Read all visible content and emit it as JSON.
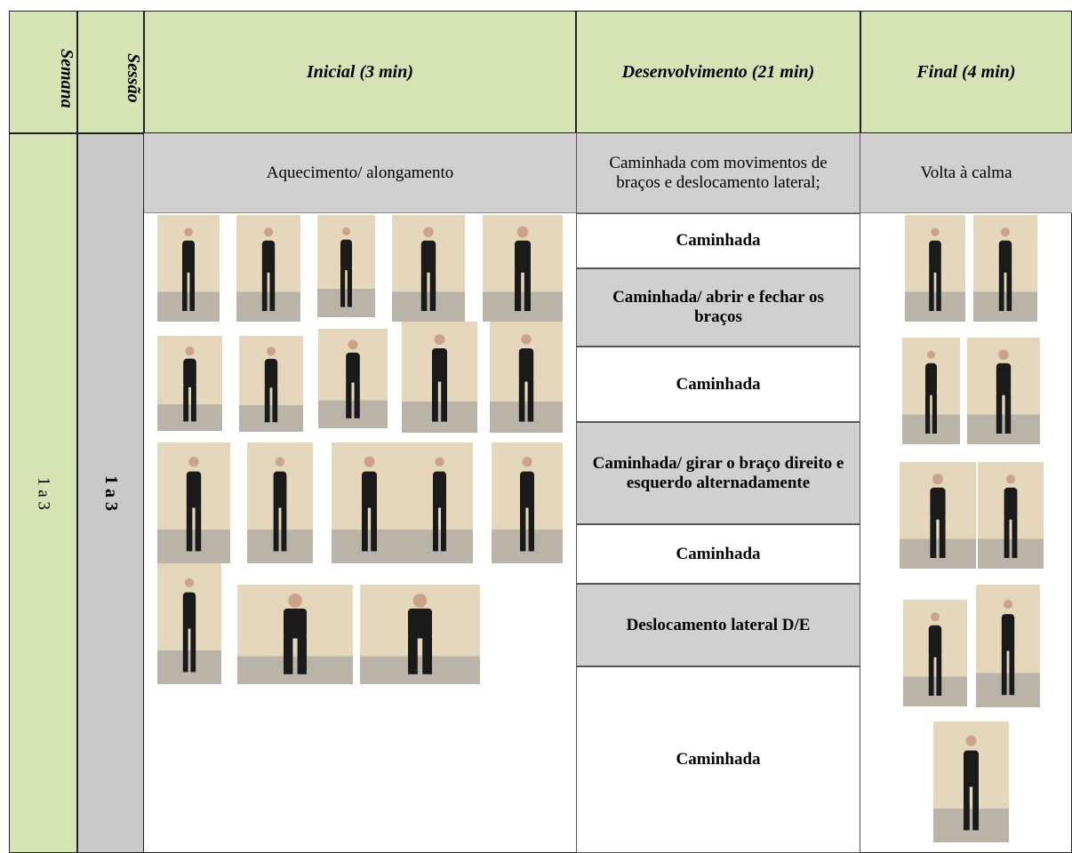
{
  "table": {
    "headers": [
      "Semana",
      "Sessão",
      "Inicial (3 min)",
      "Desenvolvimento (21 min)",
      "Final (4 min)"
    ],
    "semana": "1 a 3",
    "sessao": "1 a 3",
    "phases": [
      "Aquecimento/ alongamento",
      "Caminhada com movimentos de braços e deslocamento lateral;",
      "Volta à calma"
    ],
    "activities": [
      "Caminhada",
      "Caminhada/ abrir e fechar os braços",
      "Caminhada",
      "Caminhada/ girar o braço direito e esquerdo alternadamente",
      "Caminhada",
      "Deslocamento lateral D/E",
      "Caminhada"
    ]
  }
}
